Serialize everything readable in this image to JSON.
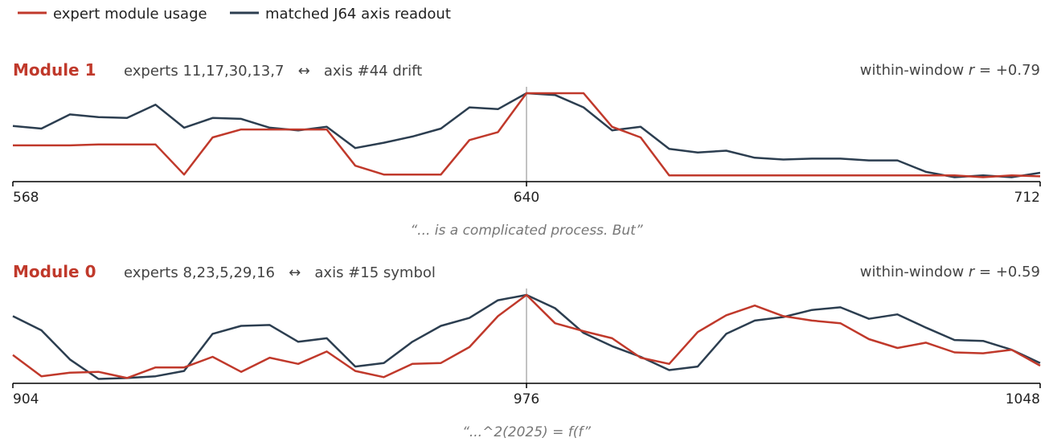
{
  "colors": {
    "expert": "#C0392B",
    "axis_readout": "#2C3E50",
    "center_line": "#999999",
    "baseline": "#000000",
    "caption": "#777777"
  },
  "legend": [
    {
      "label": "expert module usage",
      "color": "#C0392B"
    },
    {
      "label": "matched J64 axis readout",
      "color": "#2C3E50"
    }
  ],
  "chart_data": [
    {
      "type": "line",
      "title": "Module 1",
      "subtitle": "experts 11,17,30,13,7   ↔   axis #44 drift",
      "correlation_prefix": "within-window ",
      "correlation_var": "r",
      "correlation_value": " = +0.79",
      "caption": "“... is a complicated process. But”",
      "xlim": [
        568,
        712
      ],
      "ylim": [
        0,
        1
      ],
      "x_ticks": [
        "568",
        "640",
        "712"
      ],
      "center_x": 640,
      "x": [
        568,
        572,
        576,
        580,
        584,
        588,
        592,
        596,
        600,
        604,
        608,
        612,
        616,
        620,
        624,
        628,
        632,
        636,
        640,
        644,
        648,
        652,
        656,
        660,
        664,
        668,
        672,
        676,
        680,
        684,
        688,
        692,
        696,
        700,
        704,
        708,
        712
      ],
      "series": [
        {
          "name": "expert module usage",
          "values": [
            0.41,
            0.41,
            0.41,
            0.42,
            0.42,
            0.42,
            0.08,
            0.5,
            0.59,
            0.59,
            0.59,
            0.59,
            0.18,
            0.08,
            0.08,
            0.08,
            0.47,
            0.56,
            1.0,
            1.0,
            1.0,
            0.62,
            0.5,
            0.07,
            0.07,
            0.07,
            0.07,
            0.07,
            0.07,
            0.07,
            0.07,
            0.07,
            0.07,
            0.07,
            0.05,
            0.07,
            0.06
          ]
        },
        {
          "name": "matched J64 axis readout",
          "values": [
            0.63,
            0.6,
            0.76,
            0.73,
            0.72,
            0.87,
            0.61,
            0.72,
            0.71,
            0.61,
            0.58,
            0.62,
            0.38,
            0.44,
            0.51,
            0.6,
            0.84,
            0.82,
            1.0,
            0.98,
            0.84,
            0.58,
            0.62,
            0.37,
            0.33,
            0.35,
            0.27,
            0.25,
            0.26,
            0.26,
            0.24,
            0.24,
            0.11,
            0.05,
            0.07,
            0.05,
            0.1
          ]
        }
      ]
    },
    {
      "type": "line",
      "title": "Module 0",
      "subtitle": "experts 8,23,5,29,16   ↔   axis #15 symbol",
      "correlation_prefix": "within-window ",
      "correlation_var": "r",
      "correlation_value": " = +0.59",
      "caption": "“...^2(2025) = f(f”",
      "xlim": [
        904,
        1048
      ],
      "ylim": [
        0,
        1
      ],
      "x_ticks": [
        "904",
        "976",
        "1048"
      ],
      "center_x": 976,
      "x": [
        904,
        908,
        912,
        916,
        920,
        924,
        928,
        932,
        936,
        940,
        944,
        948,
        952,
        956,
        960,
        964,
        968,
        972,
        976,
        980,
        984,
        988,
        992,
        996,
        1000,
        1004,
        1008,
        1012,
        1016,
        1020,
        1024,
        1028,
        1032,
        1036,
        1040,
        1044,
        1048
      ],
      "series": [
        {
          "name": "expert module usage",
          "values": [
            0.32,
            0.08,
            0.12,
            0.13,
            0.06,
            0.18,
            0.18,
            0.3,
            0.13,
            0.29,
            0.22,
            0.36,
            0.14,
            0.07,
            0.22,
            0.23,
            0.41,
            0.76,
            1.0,
            0.68,
            0.59,
            0.51,
            0.29,
            0.22,
            0.58,
            0.77,
            0.88,
            0.76,
            0.71,
            0.68,
            0.5,
            0.4,
            0.46,
            0.35,
            0.34,
            0.38,
            0.2
          ]
        },
        {
          "name": "matched J64 axis readout",
          "values": [
            0.76,
            0.6,
            0.27,
            0.05,
            0.06,
            0.08,
            0.14,
            0.56,
            0.65,
            0.66,
            0.47,
            0.51,
            0.19,
            0.23,
            0.47,
            0.65,
            0.74,
            0.94,
            1.0,
            0.85,
            0.57,
            0.42,
            0.3,
            0.15,
            0.19,
            0.56,
            0.71,
            0.75,
            0.83,
            0.86,
            0.73,
            0.78,
            0.63,
            0.49,
            0.48,
            0.38,
            0.23
          ]
        }
      ]
    }
  ]
}
